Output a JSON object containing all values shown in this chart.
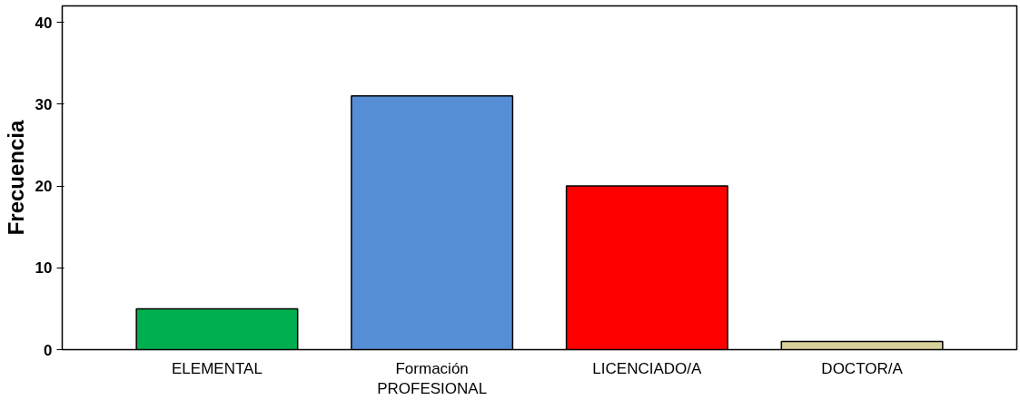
{
  "chart_data": {
    "type": "bar",
    "ylabel": "Frecuencia",
    "categories": [
      "ELEMENTAL",
      "Formación\nPROFESIONAL",
      "LICENCIADO/A",
      "DOCTOR/A"
    ],
    "values": [
      5,
      31,
      20,
      1
    ],
    "colors": [
      "#00b050",
      "#558ed5",
      "#ff0000",
      "#d8d09a"
    ],
    "ylim": [
      0,
      42
    ],
    "yticks": [
      0,
      10,
      20,
      30,
      40
    ],
    "grid": false
  }
}
